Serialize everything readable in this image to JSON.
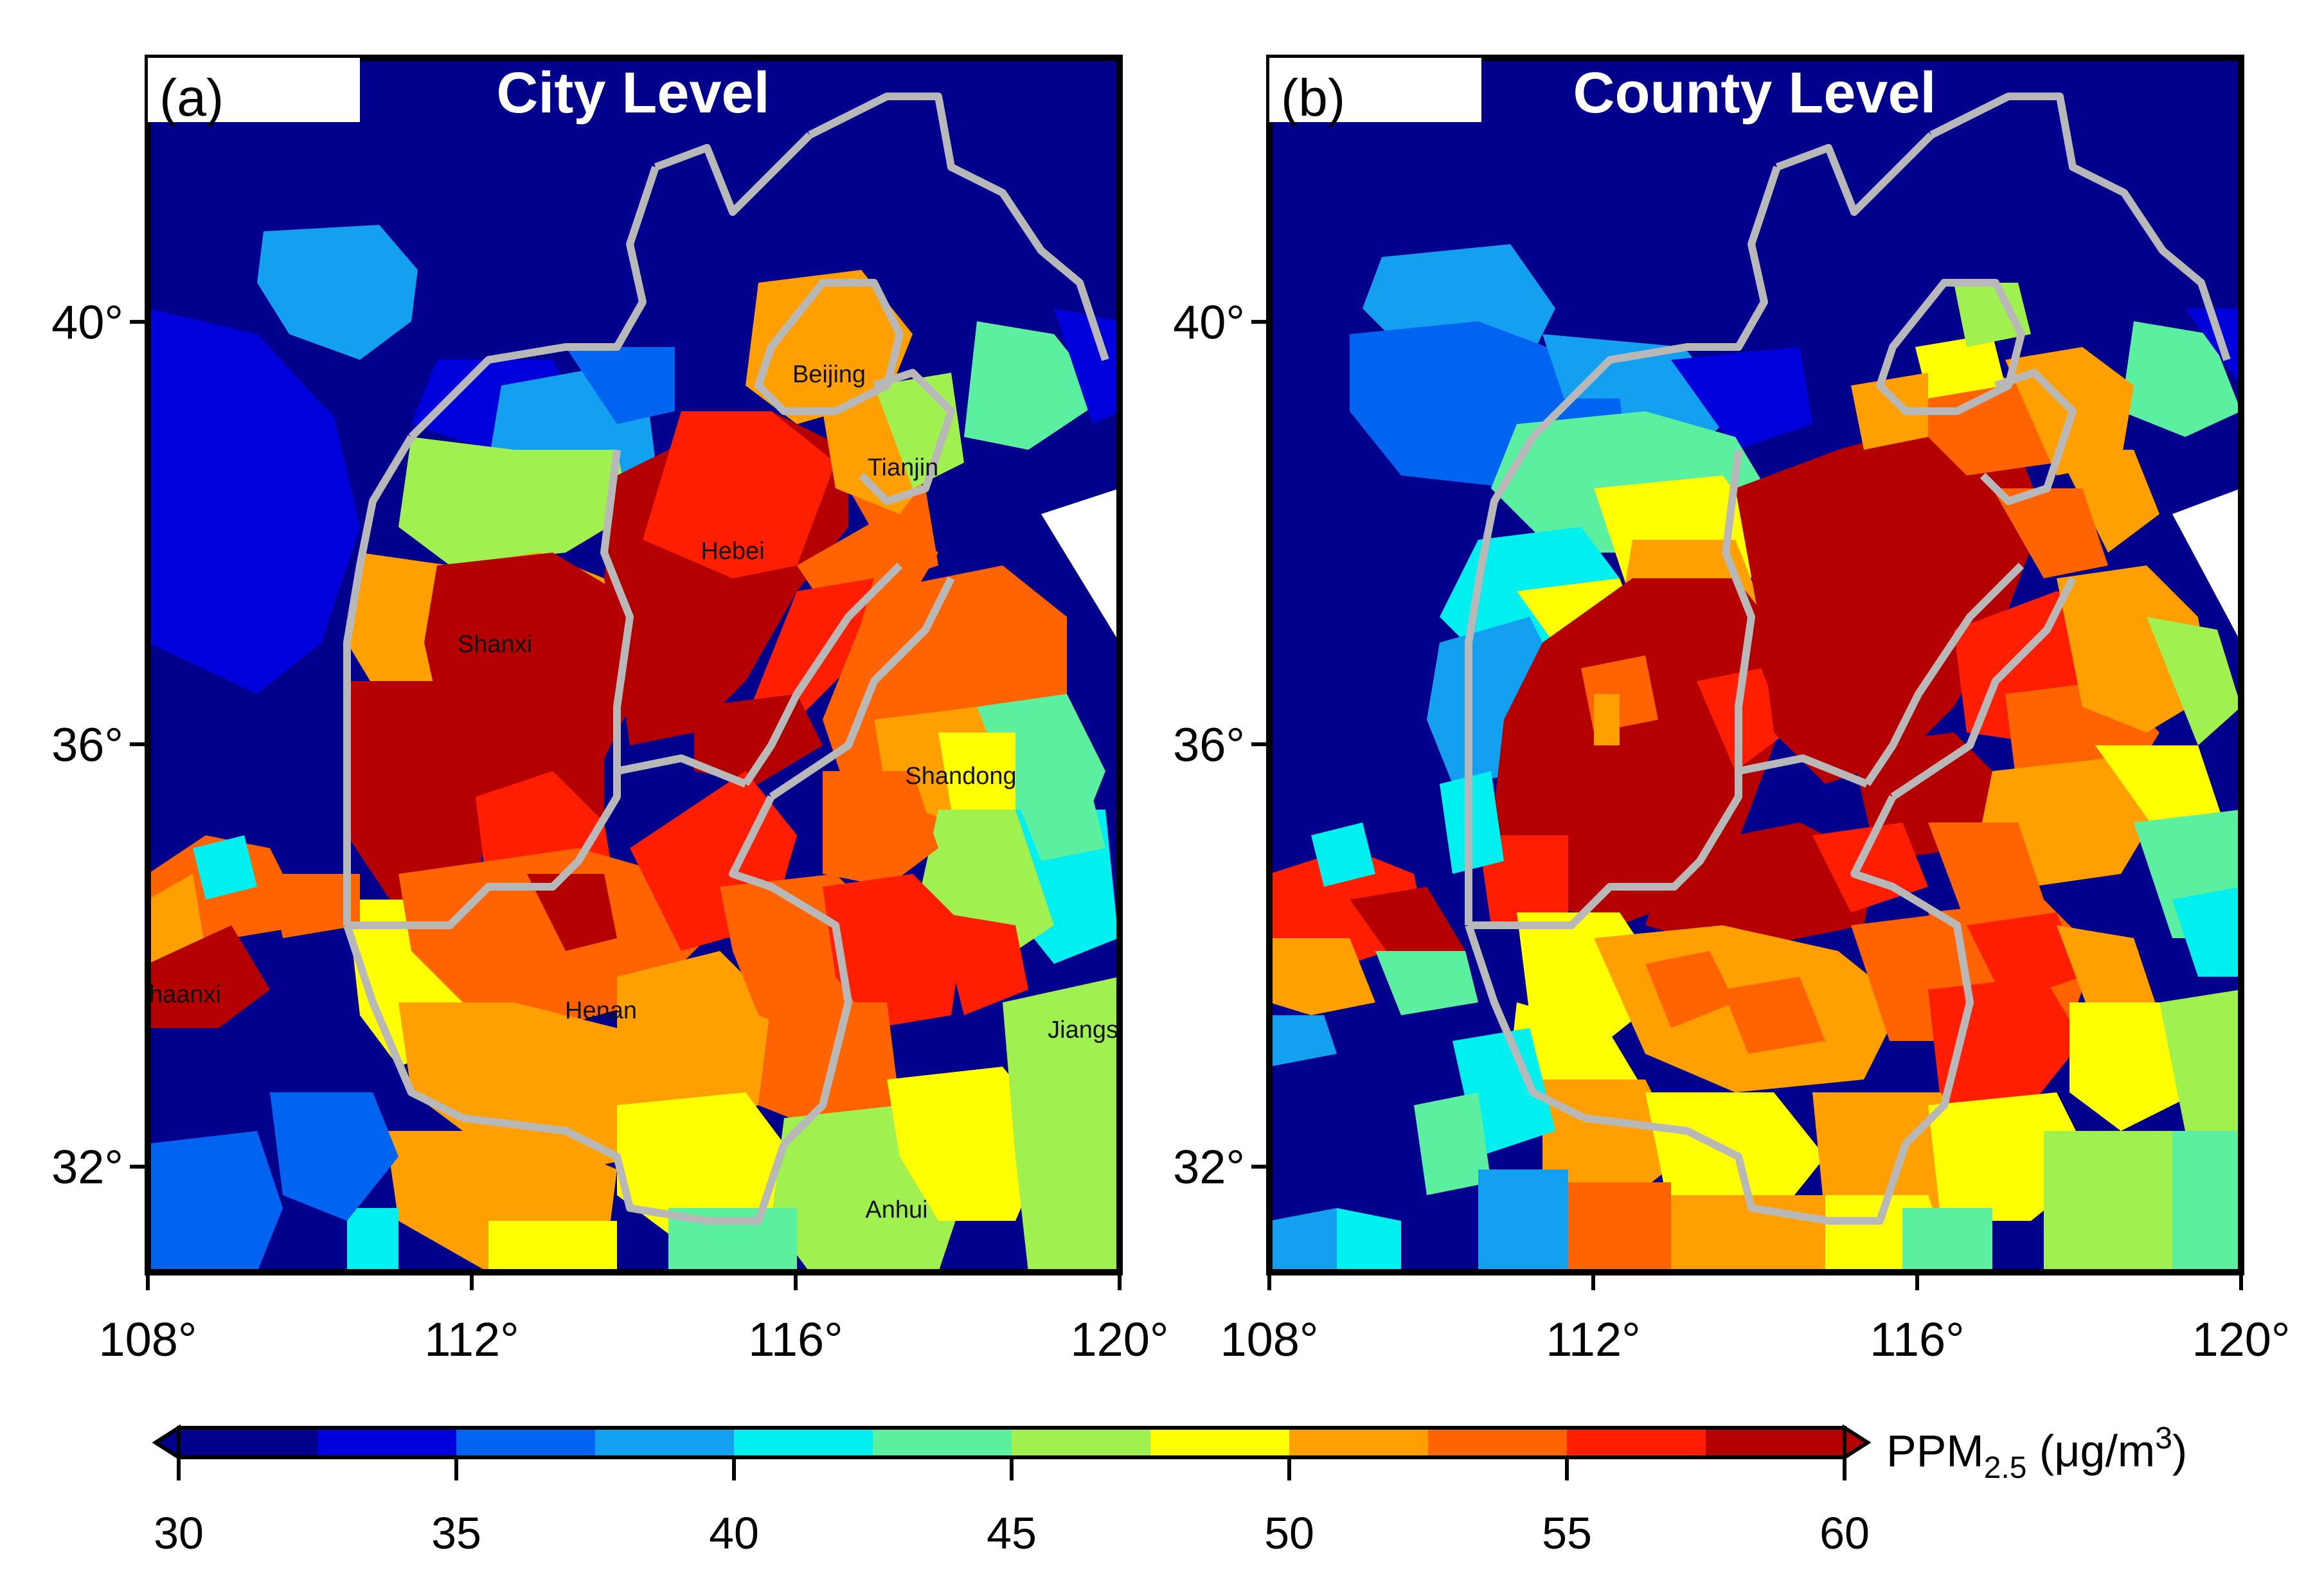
{
  "figure": {
    "panels": [
      {
        "id": "a",
        "label": "(a)",
        "title": "City Level",
        "provinces": [
          "Beijing",
          "Tianjin",
          "Hebei",
          "Shanxi",
          "Shandong",
          "Henan",
          "Shaanxi",
          "Jiangsu",
          "Anhui"
        ],
        "province_display": [
          "Beijing",
          "Tianjin",
          "Hebei",
          "Shanxi",
          "Shandong",
          "Henan",
          "haanxi",
          "Jiangs",
          "Anhui"
        ]
      },
      {
        "id": "b",
        "label": "(b)",
        "title": "County Level"
      }
    ],
    "lon_ticks": [
      "108°",
      "112°",
      "116°",
      "120°"
    ],
    "lat_ticks": [
      "40°",
      "36°",
      "32°"
    ],
    "lon_range": [
      108,
      120
    ],
    "lat_range": [
      31,
      42.5
    ]
  },
  "colorbar": {
    "label": "PPM",
    "label_sub": "2.5",
    "label_unit": " (μg/m",
    "label_sup": "3",
    "label_close": ")",
    "ticks": [
      "30",
      "35",
      "40",
      "45",
      "50",
      "55",
      "60"
    ],
    "range": [
      30,
      60
    ],
    "colors": [
      "#00008c",
      "#0000dc",
      "#0064f0",
      "#14a0f0",
      "#00f0f0",
      "#5af0a0",
      "#a0f050",
      "#ffff00",
      "#ffa000",
      "#ff6400",
      "#ff1e00",
      "#b40000"
    ]
  }
}
